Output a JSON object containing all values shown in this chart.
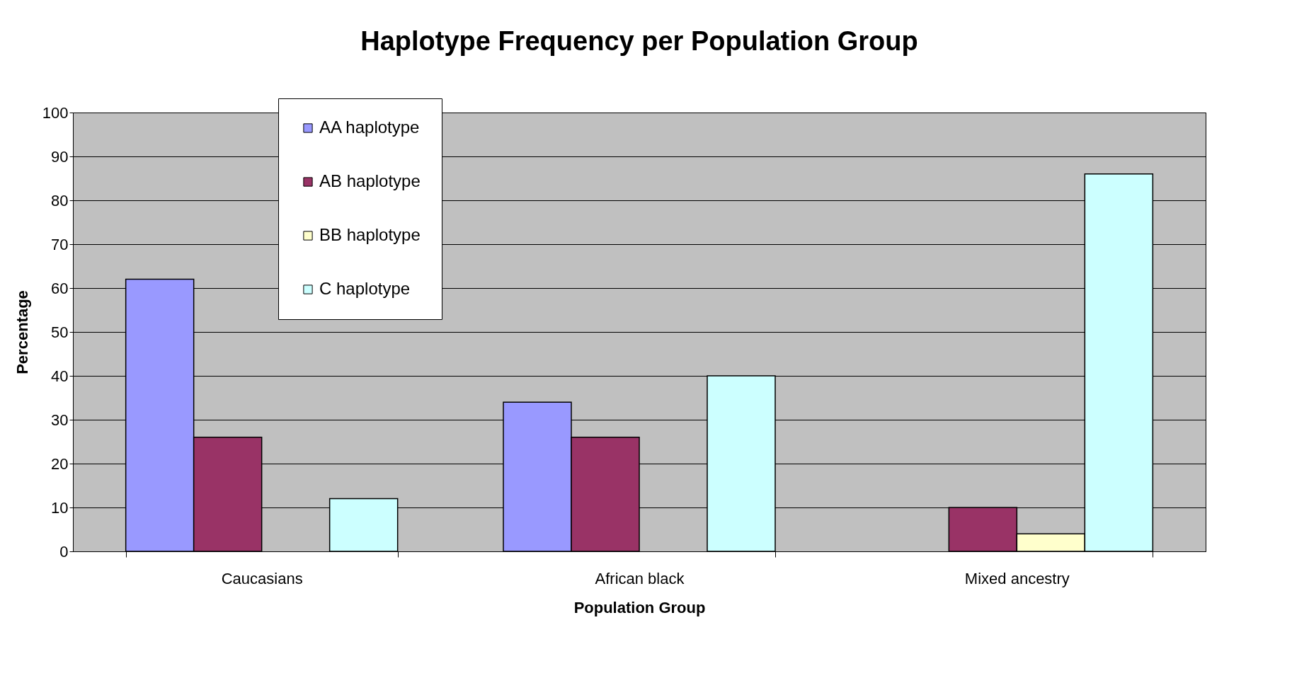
{
  "chart_data": {
    "type": "bar",
    "title": "Haplotype Frequency per Population Group",
    "xlabel": "Population Group",
    "ylabel": "Percentage",
    "categories": [
      "Caucasians",
      "African black",
      "Mixed ancestry"
    ],
    "series": [
      {
        "name": "AA haplotype",
        "color": "#9999ff",
        "values": [
          62,
          34,
          null
        ]
      },
      {
        "name": "AB haplotype",
        "color": "#993366",
        "values": [
          26,
          26,
          10
        ]
      },
      {
        "name": "BB haplotype",
        "color": "#ffffcc",
        "values": [
          null,
          null,
          4
        ]
      },
      {
        "name": "C haplotype",
        "color": "#ccffff",
        "values": [
          12,
          40,
          86
        ]
      }
    ],
    "ylim": [
      0,
      100
    ],
    "yticks": [
      0,
      10,
      20,
      30,
      40,
      50,
      60,
      70,
      80,
      90,
      100
    ],
    "grid": "y",
    "legend": "top left"
  }
}
